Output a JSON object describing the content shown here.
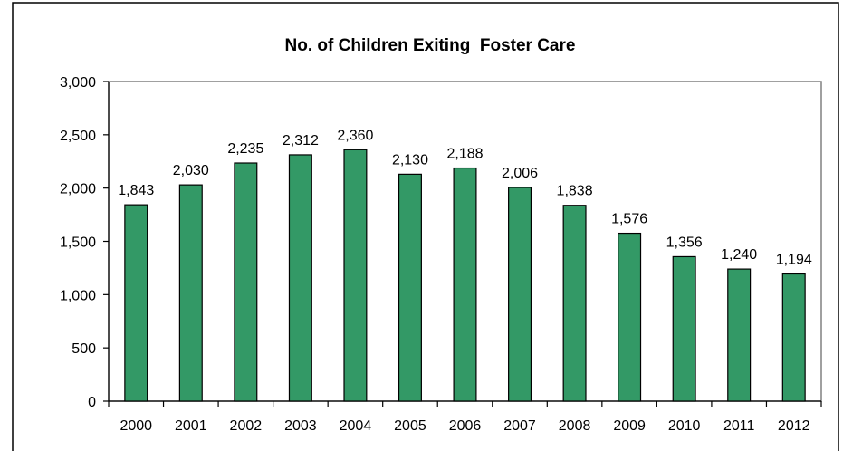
{
  "chart_data": {
    "type": "bar",
    "title": "No. of Children Exiting  Foster Care",
    "xlabel": "",
    "ylabel": "",
    "categories": [
      "2000",
      "2001",
      "2002",
      "2003",
      "2004",
      "2005",
      "2006",
      "2007",
      "2008",
      "2009",
      "2010",
      "2011",
      "2012"
    ],
    "values": [
      1843,
      2030,
      2235,
      2312,
      2360,
      2130,
      2188,
      2006,
      1838,
      1576,
      1356,
      1240,
      1194
    ],
    "data_labels": [
      "1,843",
      "2,030",
      "2,235",
      "2,312",
      "2,360",
      "2,130",
      "2,188",
      "2,006",
      "1,838",
      "1,576",
      "1,356",
      "1,240",
      "1,194"
    ],
    "ylim": [
      0,
      3000
    ],
    "yticks": [
      0,
      500,
      1000,
      1500,
      2000,
      2500,
      3000
    ],
    "ytick_labels": [
      "0",
      "500",
      "1,000",
      "1,500",
      "2,000",
      "2,500",
      "3,000"
    ],
    "grid": false,
    "legend": "none",
    "bar_color": "#339966",
    "bar_edge_color": "#000000"
  }
}
